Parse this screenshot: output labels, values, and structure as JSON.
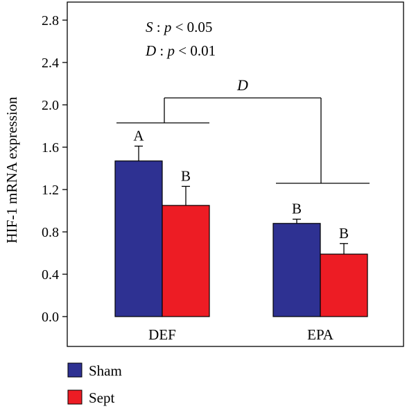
{
  "chart_data": {
    "type": "bar",
    "title": "",
    "xlabel": "",
    "ylabel": "HIF-1 mRNA expression",
    "ylim": [
      0,
      2.95
    ],
    "yticks": [
      "0.0",
      "0.4",
      "0.8",
      "1.2",
      "1.6",
      "2.0",
      "2.4",
      "2.8"
    ],
    "categories": [
      "DEF",
      "EPA"
    ],
    "series": [
      {
        "name": "Sham",
        "color": "#2e3192",
        "values": [
          1.47,
          0.88
        ],
        "errors": [
          0.14,
          0.04
        ],
        "letters": [
          "A",
          "B"
        ]
      },
      {
        "name": "Sept",
        "color": "#ed1c24",
        "values": [
          1.05,
          0.59
        ],
        "errors": [
          0.18,
          0.1
        ],
        "letters": [
          "B",
          "B"
        ]
      }
    ],
    "annotations": {
      "line1": {
        "prefix": "S",
        "mid": " : ",
        "p": "p",
        "rest": " < 0.05"
      },
      "line2": {
        "prefix": "D",
        "mid": " : ",
        "p": "p",
        "rest": " < 0.01"
      },
      "bracket_label": "D"
    },
    "legend": {
      "placement": "bottom-left",
      "items": [
        "Sham",
        "Sept"
      ]
    },
    "grid": false
  }
}
